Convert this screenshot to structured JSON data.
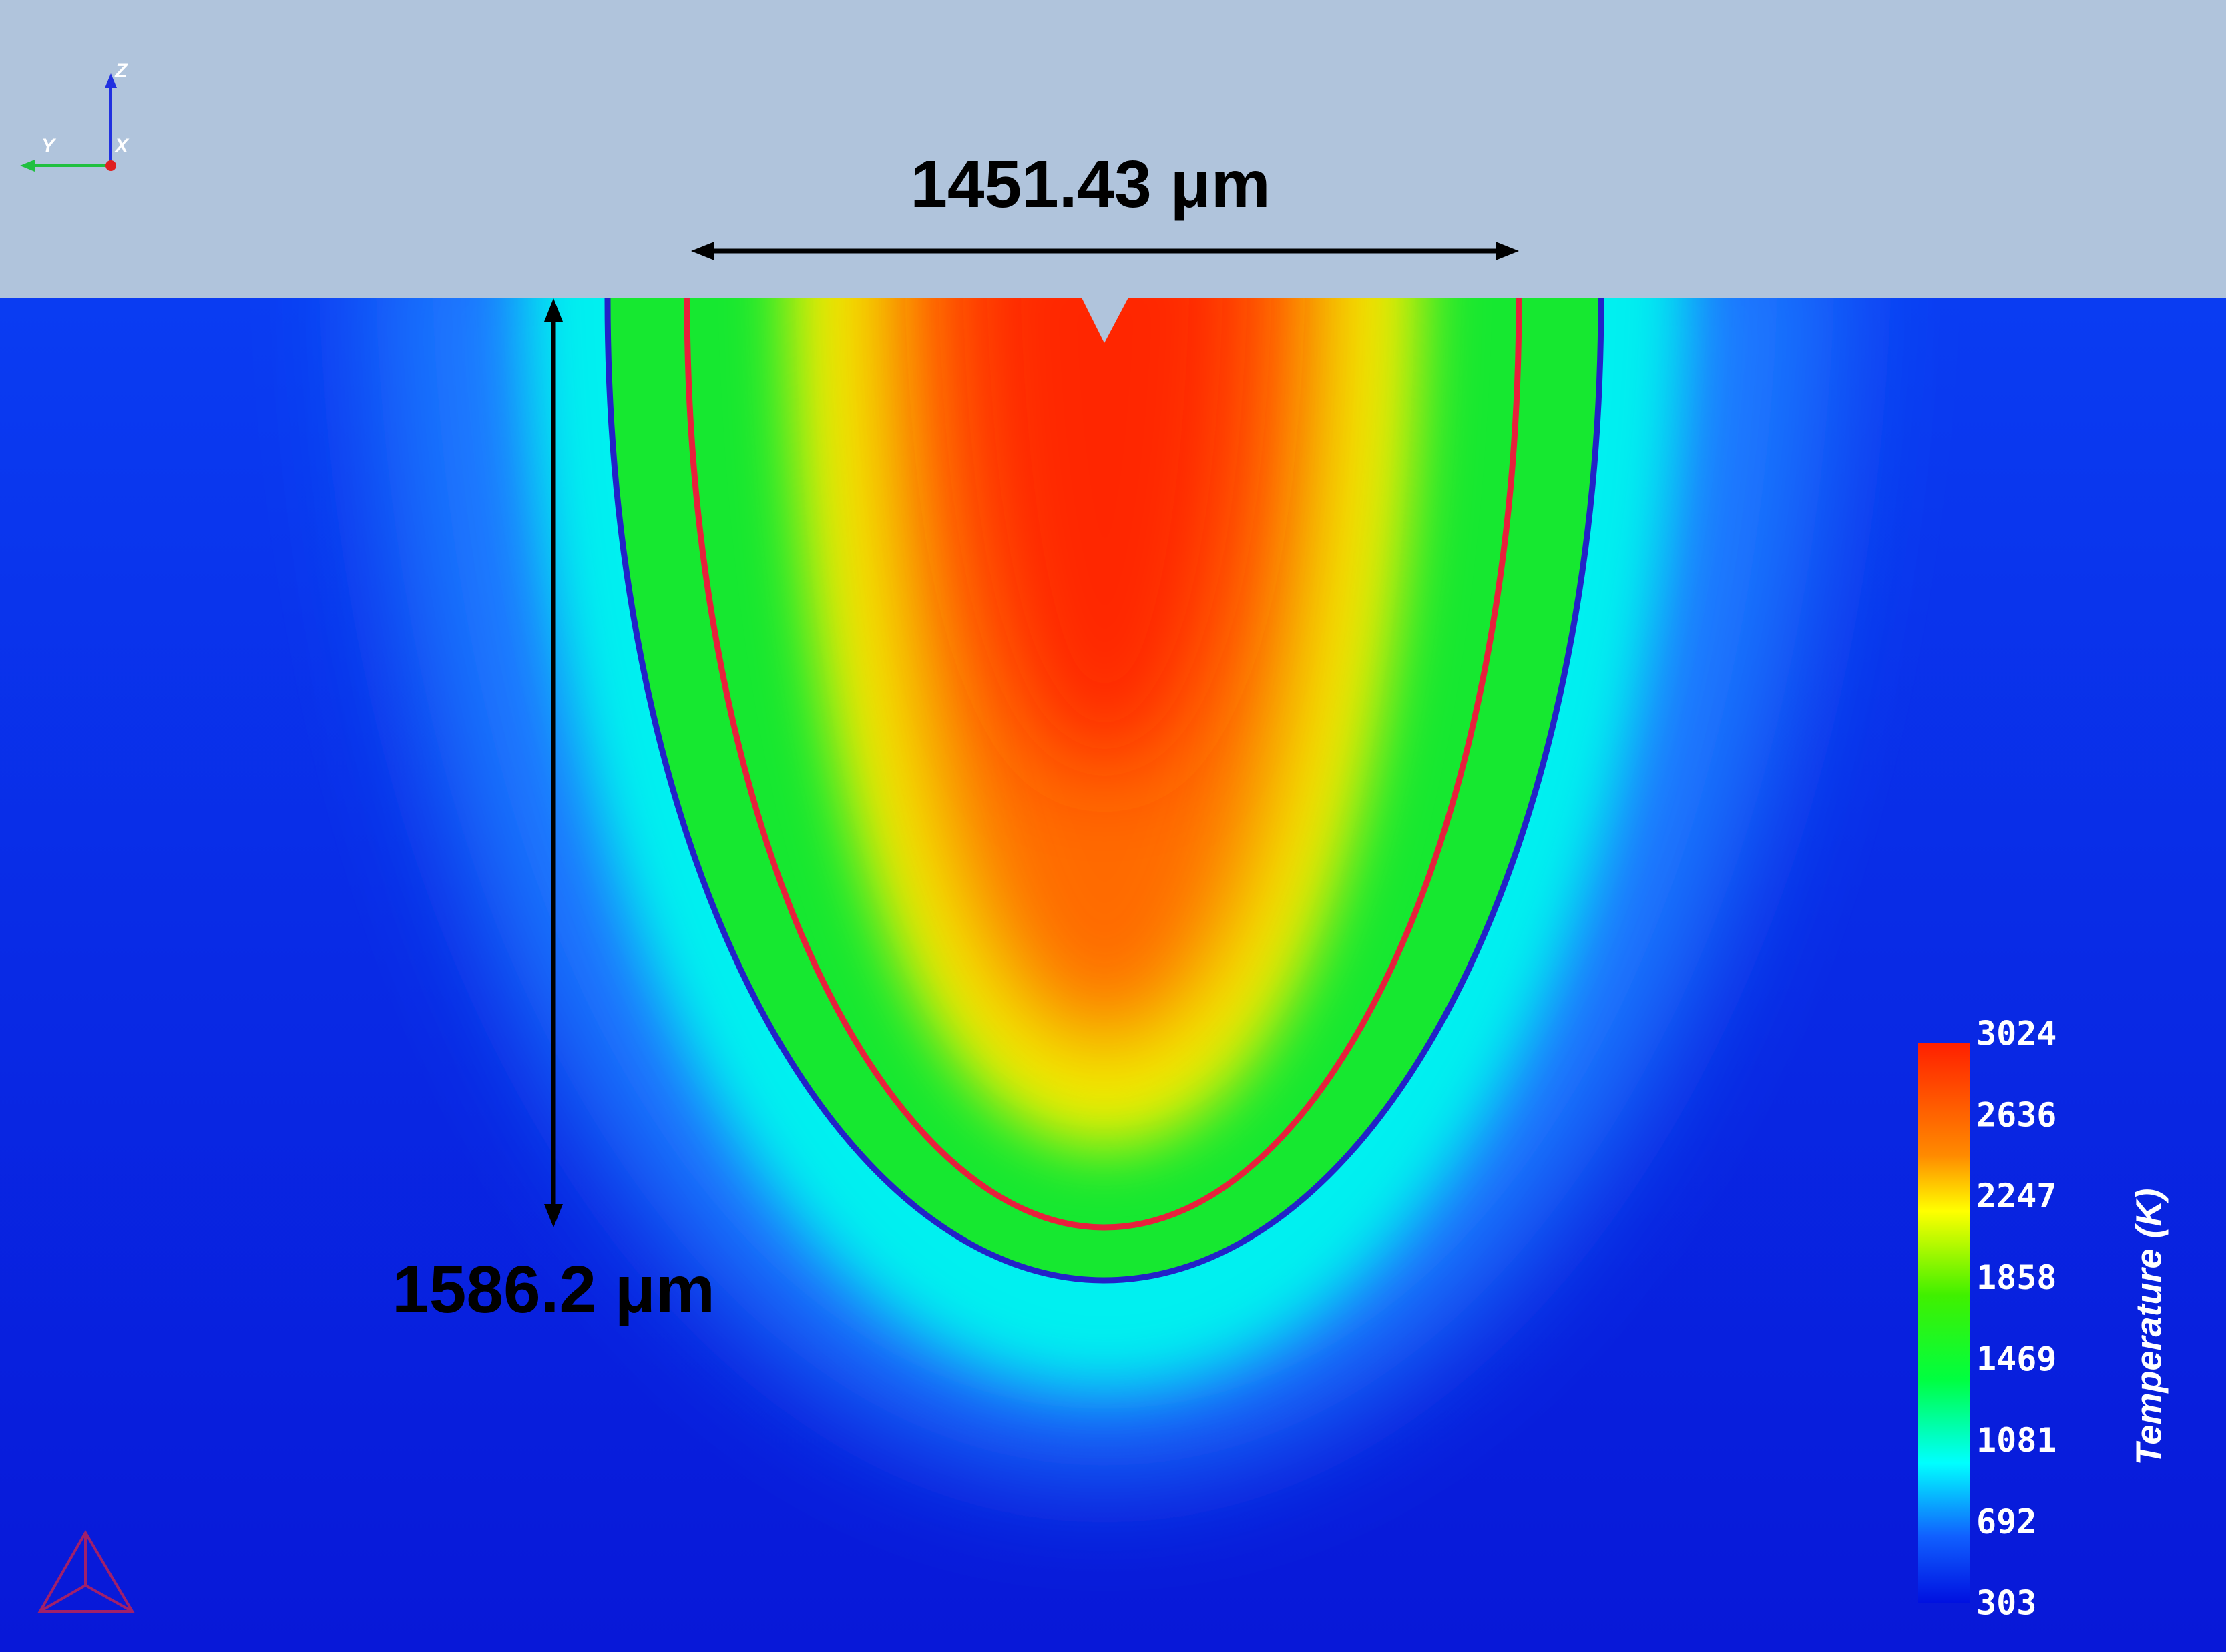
{
  "dimensions": {
    "width_label": "1451.43 μm",
    "depth_label": "1586.2 μm"
  },
  "axes": {
    "z": "Z",
    "y": "Y",
    "x": "X"
  },
  "colorbar": {
    "title": "Temperature (K)",
    "ticks": [
      3024,
      2636,
      2247,
      1858,
      1469,
      1081,
      692,
      303
    ]
  }
}
